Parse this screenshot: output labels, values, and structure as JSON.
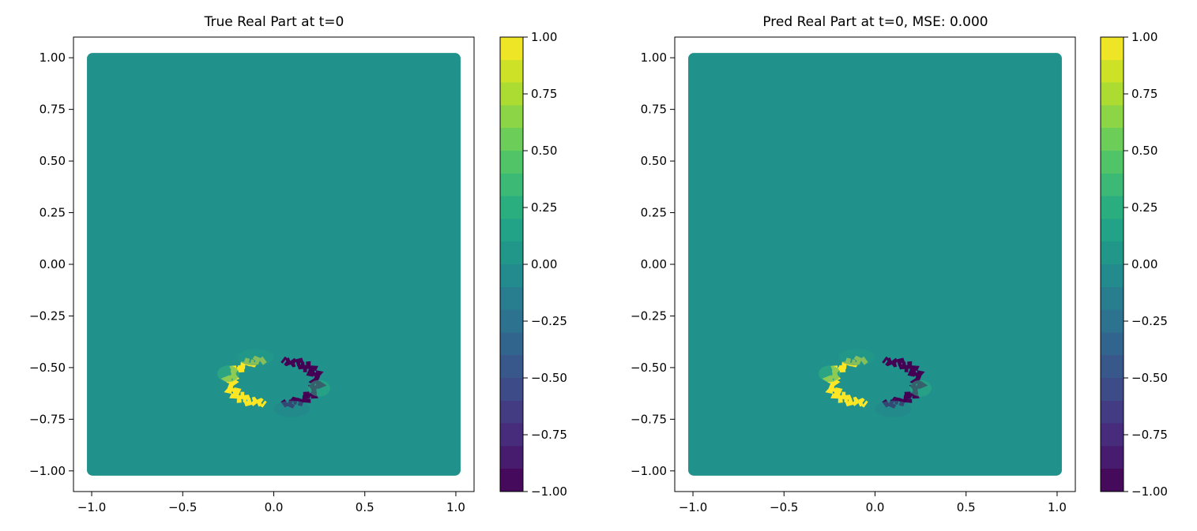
{
  "figure": {
    "panels": [
      {
        "title": "True Real Part at t=0"
      },
      {
        "title": "Pred Real Part at t=0, MSE: 0.000"
      }
    ]
  },
  "colors": {
    "background_value_color": "#21918c",
    "viridis": [
      "#440154",
      "#482475",
      "#414487",
      "#355f8d",
      "#2a788e",
      "#21918c",
      "#22a884",
      "#44bf70",
      "#7ad151",
      "#bddf26",
      "#fde725"
    ]
  },
  "chart_data": [
    {
      "type": "heatmap",
      "title": "True Real Part at t=0",
      "xlabel": "",
      "ylabel": "",
      "xlim": [
        -1.1,
        1.1
      ],
      "ylim": [
        -1.1,
        1.1
      ],
      "x_ticks": [
        "−1.0",
        "−0.5",
        "0.0",
        "0.5",
        "1.0"
      ],
      "y_ticks": [
        "1.00",
        "0.75",
        "0.50",
        "0.25",
        "0.00",
        "−0.25",
        "−0.50",
        "−0.75",
        "−1.00"
      ],
      "domain": {
        "x": [
          -1.0,
          1.0
        ],
        "y": [
          -1.0,
          1.0
        ]
      },
      "background_value": 0.0,
      "colorbar": {
        "range": [
          -1.0,
          1.0
        ],
        "levels": 20,
        "ticks": [
          "1.00",
          "0.75",
          "0.50",
          "0.25",
          "0.00",
          "−0.25",
          "−0.50",
          "−0.75",
          "−1.00"
        ],
        "colormap": "viridis"
      },
      "features": [
        {
          "kind": "ring-half",
          "side": "left",
          "value": 1.0,
          "center": [
            -0.05,
            -0.57
          ],
          "rx": 0.2,
          "ry": 0.11
        },
        {
          "kind": "ring-half",
          "side": "right",
          "value": -1.0,
          "center": [
            0.05,
            -0.57
          ],
          "rx": 0.2,
          "ry": 0.11
        },
        {
          "kind": "blob",
          "value": 0.3,
          "center": [
            -0.25,
            -0.53
          ],
          "rx": 0.06,
          "ry": 0.04
        },
        {
          "kind": "blob",
          "value": 0.25,
          "center": [
            0.25,
            -0.6
          ],
          "rx": 0.06,
          "ry": 0.04
        },
        {
          "kind": "blob",
          "value": 0.1,
          "center": [
            -0.1,
            -0.45
          ],
          "rx": 0.1,
          "ry": 0.04
        },
        {
          "kind": "blob",
          "value": -0.1,
          "center": [
            0.1,
            -0.7
          ],
          "rx": 0.1,
          "ry": 0.04
        }
      ],
      "grid": false
    },
    {
      "type": "heatmap",
      "title": "Pred Real Part at t=0, MSE: 0.000",
      "xlabel": "",
      "ylabel": "",
      "xlim": [
        -1.1,
        1.1
      ],
      "ylim": [
        -1.1,
        1.1
      ],
      "x_ticks": [
        "−1.0",
        "−0.5",
        "0.0",
        "0.5",
        "1.0"
      ],
      "y_ticks": [
        "1.00",
        "0.75",
        "0.50",
        "0.25",
        "0.00",
        "−0.25",
        "−0.50",
        "−0.75",
        "−1.00"
      ],
      "domain": {
        "x": [
          -1.0,
          1.0
        ],
        "y": [
          -1.0,
          1.0
        ]
      },
      "background_value": 0.0,
      "colorbar": {
        "range": [
          -1.0,
          1.0
        ],
        "levels": 20,
        "ticks": [
          "1.00",
          "0.75",
          "0.50",
          "0.25",
          "0.00",
          "−0.25",
          "−0.50",
          "−0.75",
          "−1.00"
        ],
        "colormap": "viridis"
      },
      "features": [
        {
          "kind": "ring-half",
          "side": "left",
          "value": 1.0,
          "center": [
            -0.05,
            -0.57
          ],
          "rx": 0.2,
          "ry": 0.11
        },
        {
          "kind": "ring-half",
          "side": "right",
          "value": -1.0,
          "center": [
            0.05,
            -0.57
          ],
          "rx": 0.2,
          "ry": 0.11
        },
        {
          "kind": "blob",
          "value": 0.3,
          "center": [
            -0.25,
            -0.53
          ],
          "rx": 0.06,
          "ry": 0.04
        },
        {
          "kind": "blob",
          "value": 0.25,
          "center": [
            0.25,
            -0.6
          ],
          "rx": 0.06,
          "ry": 0.04
        },
        {
          "kind": "blob",
          "value": 0.1,
          "center": [
            -0.1,
            -0.45
          ],
          "rx": 0.1,
          "ry": 0.04
        },
        {
          "kind": "blob",
          "value": -0.1,
          "center": [
            0.1,
            -0.7
          ],
          "rx": 0.1,
          "ry": 0.04
        }
      ],
      "grid": false
    }
  ]
}
